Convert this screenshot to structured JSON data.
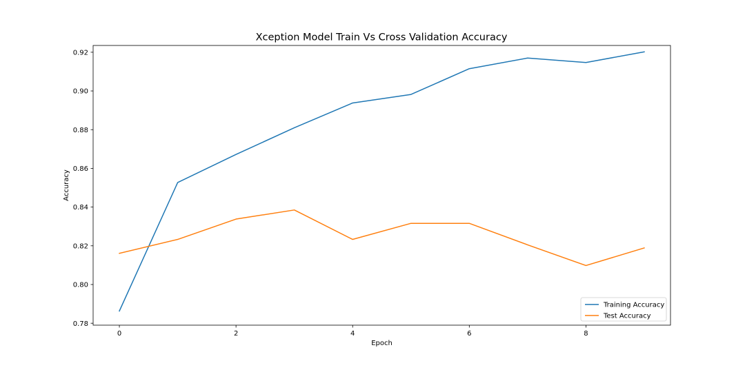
{
  "chart_data": {
    "type": "line",
    "title": "Xception Model Train Vs Cross Validation Accuracy",
    "xlabel": "Epoch",
    "ylabel": "Accuracy",
    "xlim": [
      -0.45,
      9.45
    ],
    "ylim": [
      0.779,
      0.9235
    ],
    "xticks": [
      0,
      2,
      4,
      6,
      8
    ],
    "xtick_labels": [
      "0",
      "2",
      "4",
      "6",
      "8"
    ],
    "yticks": [
      0.78,
      0.8,
      0.82,
      0.84,
      0.86,
      0.88,
      0.9,
      0.92
    ],
    "ytick_labels": [
      "0.78",
      "0.80",
      "0.82",
      "0.84",
      "0.86",
      "0.88",
      "0.90",
      "0.92"
    ],
    "grid": false,
    "legend_position": "lower-right",
    "x": [
      0,
      1,
      2,
      3,
      4,
      5,
      6,
      7,
      8,
      9
    ],
    "series": [
      {
        "name": "Training Accuracy",
        "color": "#1f77b4",
        "values": [
          0.7863,
          0.8527,
          0.8672,
          0.881,
          0.8938,
          0.8982,
          0.9115,
          0.917,
          0.9147,
          0.9202
        ]
      },
      {
        "name": "Test Accuracy",
        "color": "#ff7f0e",
        "values": [
          0.8161,
          0.8233,
          0.8338,
          0.8385,
          0.8233,
          0.8316,
          0.8316,
          0.8205,
          0.8098,
          0.8189
        ]
      }
    ]
  }
}
